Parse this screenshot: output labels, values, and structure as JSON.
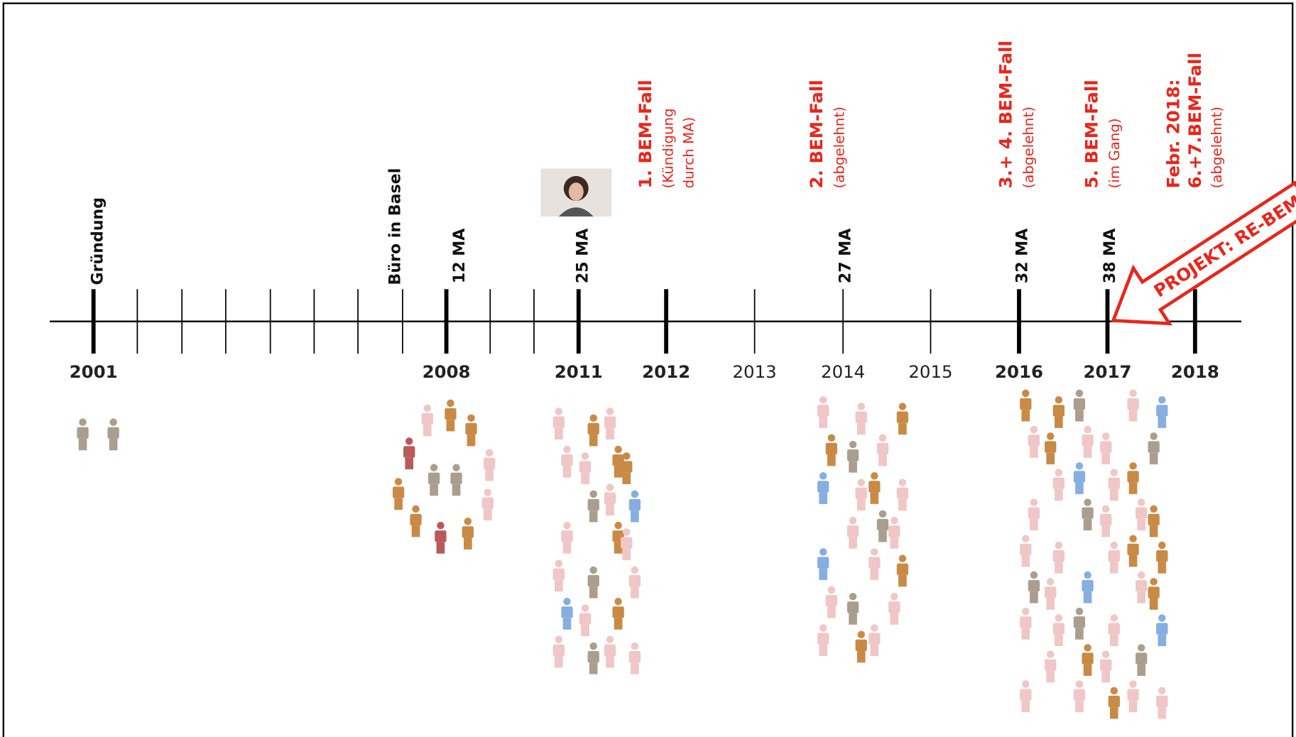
{
  "timeline": {
    "years": [
      {
        "label": "2001",
        "bold": true
      },
      {
        "label": "2008",
        "bold": true
      },
      {
        "label": "2011",
        "bold": true
      },
      {
        "label": "2012",
        "bold": true
      },
      {
        "label": "2013",
        "bold": false
      },
      {
        "label": "2014",
        "bold": false
      },
      {
        "label": "2015",
        "bold": false
      },
      {
        "label": "2016",
        "bold": true
      },
      {
        "label": "2017",
        "bold": true
      },
      {
        "label": "2018",
        "bold": true
      }
    ],
    "milestones": [
      "Gründung",
      "Büro in Basel",
      "12 MA",
      "25 MA",
      "27 MA",
      "32 MA",
      "38 MA"
    ],
    "bem_cases": [
      {
        "title": "1. BEM-Fall",
        "notes": [
          "(Kündigung",
          "durch MA)"
        ]
      },
      {
        "title": "2. BEM-Fall",
        "notes": [
          "(abgelehnt)"
        ]
      },
      {
        "title": "3.+ 4. BEM-Fall",
        "notes": [
          "(abgelehnt)"
        ]
      },
      {
        "title": "5. BEM-Fall",
        "notes": [
          "(im Gang)"
        ]
      },
      {
        "title": "Febr. 2018:",
        "notes": [
          "6.+7.BEM-Fall",
          "(abgelehnt)"
        ]
      }
    ],
    "arrow_label": "PROJEKT: RE-BEM"
  }
}
